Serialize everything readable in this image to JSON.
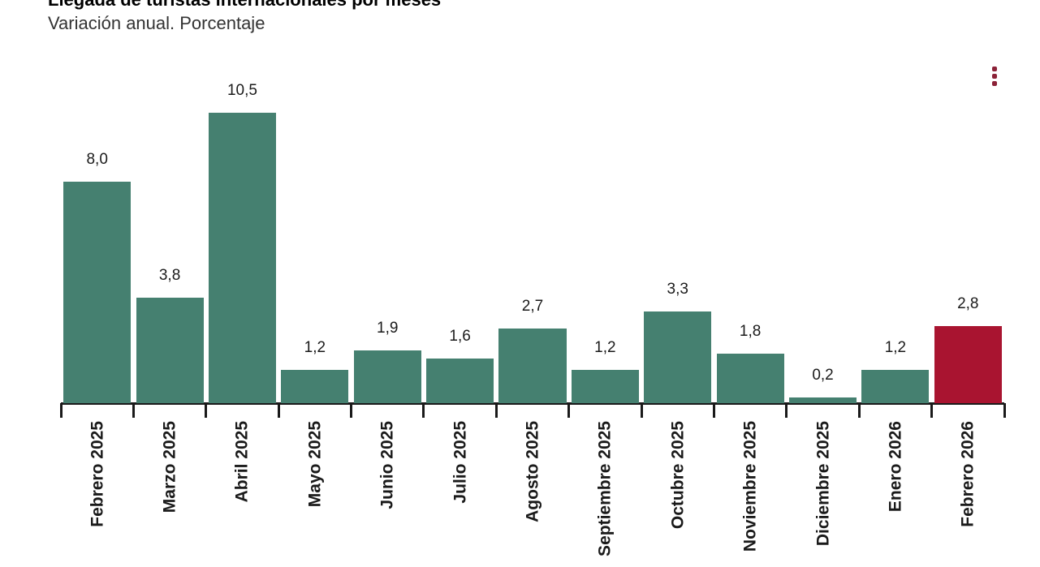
{
  "header": {
    "title": "Llegada de turistas internacionales por meses",
    "subtitle": "Variación anual. Porcentaje"
  },
  "context_menu": {
    "icon": "kebab-menu",
    "color": "#8C2238"
  },
  "chart_data": {
    "type": "bar",
    "title": "Llegada de turistas internacionales por meses",
    "subtitle": "Variación anual. Porcentaje",
    "categories": [
      "Febrero 2025",
      "Marzo 2025",
      "Abril 2025",
      "Mayo 2025",
      "Junio 2025",
      "Julio 2025",
      "Agosto 2025",
      "Septiembre 2025",
      "Octubre 2025",
      "Noviembre 2025",
      "Diciembre 2025",
      "Enero 2026",
      "Febrero 2026"
    ],
    "values": [
      8.0,
      3.8,
      10.5,
      1.2,
      1.9,
      1.6,
      2.7,
      1.2,
      3.3,
      1.8,
      0.2,
      1.2,
      2.8
    ],
    "value_labels": [
      "8,0",
      "3,8",
      "10,5",
      "1,2",
      "1,9",
      "1,6",
      "2,7",
      "1,2",
      "3,3",
      "1,8",
      "0,2",
      "1,2",
      "2,8"
    ],
    "xlabel": "",
    "ylabel": "",
    "ylim": [
      0,
      10.8
    ],
    "grid": false,
    "legend": false,
    "bar_color": "#458070",
    "highlight_color": "#A91430",
    "highlight_index": 12,
    "axis_color": "#1a1a1a"
  }
}
